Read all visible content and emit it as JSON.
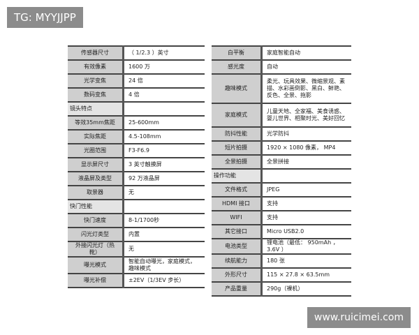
{
  "watermark_top": "TG: MYYJJPP",
  "watermark_bottom": "www.ruicimei.com",
  "left": [
    {
      "label": "传感器尺寸",
      "value": "（ 1/2.3 ）英寸"
    },
    {
      "label": "有效像素",
      "value": "1600 万"
    },
    {
      "label": "光学变焦",
      "value": "24 倍"
    },
    {
      "label": "数码变焦",
      "value": "4 倍"
    },
    {
      "label": "镜头特点",
      "value": "",
      "section": true
    },
    {
      "label": "等效35mm焦距",
      "value": "25-600mm"
    },
    {
      "label": "实际焦距",
      "value": "4.5-108mm"
    },
    {
      "label": "光圈范围",
      "value": "F3-F6.9"
    },
    {
      "label": "显示屏尺寸",
      "value": "3 英寸触摸屏"
    },
    {
      "label": "液晶屏及类型",
      "value": "92 万液晶屏"
    },
    {
      "label": "取景器",
      "value": "无"
    },
    {
      "label": "快门性能",
      "value": "",
      "section": true
    },
    {
      "label": "快门速度",
      "value": "8-1/1700秒"
    },
    {
      "label": "闪光灯类型",
      "value": "内置"
    },
    {
      "label": "外接闪光灯（热靴）",
      "value": "无"
    },
    {
      "label": "曝光模式",
      "value": "智能自动曝光，家庭模式，趣味模式",
      "tall": true
    },
    {
      "label": "曝光补偿",
      "value": "±2EV（1/3EV 步长）"
    }
  ],
  "right": [
    {
      "label": "白平衡",
      "value": "家庭智能自动"
    },
    {
      "label": "感光度",
      "value": "自动"
    },
    {
      "label": "趣味模式",
      "value": "柔光、玩具效果、微缩景观、素描、水彩画倒影、黑白、鲜艳、反色、全景、拖影",
      "h": 42
    },
    {
      "label": "家庭模式",
      "value": "儿童天地、全家福、美食诱惑、婴儿世界、相聚时光、美好回忆",
      "h": 34
    },
    {
      "label": "防抖性能",
      "value": "光学防抖"
    },
    {
      "label": "短片拍摄",
      "value": "1920 × 1080 像素， MP4"
    },
    {
      "label": "全景拍摄",
      "value": "全景拼接"
    },
    {
      "label": "操作功能",
      "value": "",
      "section": true
    },
    {
      "label": "文件格式",
      "value": "JPEG"
    },
    {
      "label": "HDMI 接口",
      "value": "支持"
    },
    {
      "label": "WIFI",
      "value": "支持"
    },
    {
      "label": "其它接口",
      "value": "Micro USB2.0"
    },
    {
      "label": "电池类型",
      "value": "锂电池（最低： 950mAh ， 3.6V ）"
    },
    {
      "label": "续航能力",
      "value": "180 张"
    },
    {
      "label": "外形尺寸",
      "value": "115 × 27.8 × 63.5mm"
    },
    {
      "label": "产品重量",
      "value": "290g（裸机）"
    }
  ]
}
